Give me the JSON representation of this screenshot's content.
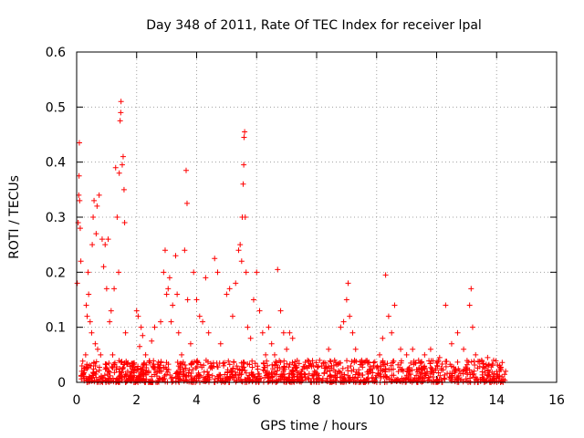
{
  "chart_data": {
    "type": "scatter",
    "title": "Day 348 of 2011, Rate Of TEC Index for receiver lpal",
    "xlabel": "GPS time / hours",
    "ylabel": "ROTI / TECUs",
    "xlim": [
      0,
      16
    ],
    "ylim": [
      0,
      0.6
    ],
    "xticks": [
      "0",
      "2",
      "4",
      "6",
      "8",
      "10",
      "12",
      "14",
      "16"
    ],
    "yticks": [
      "0",
      "0.1",
      "0.2",
      "0.3",
      "0.4",
      "0.5",
      "0.6"
    ],
    "grid": true,
    "marker": "+",
    "color": "#ff0000",
    "series": [
      {
        "points": [
          [
            0.02,
            0.18
          ],
          [
            0.05,
            0.29
          ],
          [
            0.07,
            0.34
          ],
          [
            0.08,
            0.375
          ],
          [
            0.09,
            0.435
          ],
          [
            0.1,
            0.33
          ],
          [
            0.12,
            0.28
          ],
          [
            0.14,
            0.22
          ],
          [
            0.17,
            0.02
          ],
          [
            0.22,
            0.015
          ],
          [
            0.25,
            0.025
          ],
          [
            0.3,
            0.05
          ],
          [
            0.32,
            0.14
          ],
          [
            0.35,
            0.12
          ],
          [
            0.38,
            0.2
          ],
          [
            0.4,
            0.16
          ],
          [
            0.45,
            0.11
          ],
          [
            0.5,
            0.09
          ],
          [
            0.52,
            0.25
          ],
          [
            0.55,
            0.3
          ],
          [
            0.58,
            0.33
          ],
          [
            0.62,
            0.07
          ],
          [
            0.65,
            0.27
          ],
          [
            0.68,
            0.32
          ],
          [
            0.7,
            0.06
          ],
          [
            0.75,
            0.34
          ],
          [
            0.8,
            0.05
          ],
          [
            0.85,
            0.26
          ],
          [
            0.9,
            0.21
          ],
          [
            0.95,
            0.25
          ],
          [
            1.0,
            0.17
          ],
          [
            1.05,
            0.26
          ],
          [
            1.1,
            0.11
          ],
          [
            1.15,
            0.13
          ],
          [
            1.2,
            0.05
          ],
          [
            1.25,
            0.17
          ],
          [
            1.3,
            0.39
          ],
          [
            1.35,
            0.3
          ],
          [
            1.4,
            0.2
          ],
          [
            1.42,
            0.38
          ],
          [
            1.45,
            0.475
          ],
          [
            1.47,
            0.49
          ],
          [
            1.48,
            0.51
          ],
          [
            1.52,
            0.395
          ],
          [
            1.55,
            0.41
          ],
          [
            1.58,
            0.35
          ],
          [
            1.6,
            0.29
          ],
          [
            1.63,
            0.09
          ],
          [
            1.7,
            0.02
          ],
          [
            1.8,
            0.01
          ],
          [
            1.9,
            0.02
          ],
          [
            2.0,
            0.13
          ],
          [
            2.05,
            0.12
          ],
          [
            2.1,
            0.065
          ],
          [
            2.15,
            0.1
          ],
          [
            2.2,
            0.085
          ],
          [
            2.3,
            0.05
          ],
          [
            2.4,
            0.02
          ],
          [
            2.5,
            0.075
          ],
          [
            2.6,
            0.1
          ],
          [
            2.7,
            0.02
          ],
          [
            2.8,
            0.11
          ],
          [
            2.9,
            0.2
          ],
          [
            2.95,
            0.24
          ],
          [
            3.0,
            0.16
          ],
          [
            3.05,
            0.17
          ],
          [
            3.1,
            0.19
          ],
          [
            3.15,
            0.11
          ],
          [
            3.2,
            0.14
          ],
          [
            3.3,
            0.23
          ],
          [
            3.35,
            0.16
          ],
          [
            3.4,
            0.09
          ],
          [
            3.5,
            0.05
          ],
          [
            3.6,
            0.24
          ],
          [
            3.65,
            0.385
          ],
          [
            3.68,
            0.325
          ],
          [
            3.7,
            0.15
          ],
          [
            3.8,
            0.07
          ],
          [
            3.9,
            0.2
          ],
          [
            4.0,
            0.15
          ],
          [
            4.1,
            0.12
          ],
          [
            4.2,
            0.11
          ],
          [
            4.3,
            0.19
          ],
          [
            4.4,
            0.09
          ],
          [
            4.5,
            0.03
          ],
          [
            4.6,
            0.225
          ],
          [
            4.7,
            0.2
          ],
          [
            4.8,
            0.07
          ],
          [
            4.9,
            0.03
          ],
          [
            5.0,
            0.16
          ],
          [
            5.1,
            0.17
          ],
          [
            5.2,
            0.12
          ],
          [
            5.3,
            0.18
          ],
          [
            5.4,
            0.24
          ],
          [
            5.45,
            0.25
          ],
          [
            5.5,
            0.22
          ],
          [
            5.52,
            0.3
          ],
          [
            5.55,
            0.36
          ],
          [
            5.57,
            0.395
          ],
          [
            5.58,
            0.445
          ],
          [
            5.6,
            0.455
          ],
          [
            5.62,
            0.3
          ],
          [
            5.65,
            0.2
          ],
          [
            5.7,
            0.1
          ],
          [
            5.8,
            0.08
          ],
          [
            5.9,
            0.15
          ],
          [
            6.0,
            0.2
          ],
          [
            6.1,
            0.13
          ],
          [
            6.2,
            0.09
          ],
          [
            6.3,
            0.05
          ],
          [
            6.4,
            0.1
          ],
          [
            6.5,
            0.07
          ],
          [
            6.6,
            0.05
          ],
          [
            6.7,
            0.205
          ],
          [
            6.8,
            0.13
          ],
          [
            6.9,
            0.09
          ],
          [
            7.0,
            0.06
          ],
          [
            7.1,
            0.09
          ],
          [
            7.2,
            0.08
          ],
          [
            7.3,
            0.03
          ],
          [
            7.5,
            0.02
          ],
          [
            7.7,
            0.04
          ],
          [
            7.9,
            0.03
          ],
          [
            8.1,
            0.04
          ],
          [
            8.3,
            0.035
          ],
          [
            8.4,
            0.06
          ],
          [
            8.5,
            0.03
          ],
          [
            8.6,
            0.04
          ],
          [
            8.8,
            0.1
          ],
          [
            8.9,
            0.11
          ],
          [
            9.0,
            0.15
          ],
          [
            9.05,
            0.18
          ],
          [
            9.1,
            0.12
          ],
          [
            9.2,
            0.09
          ],
          [
            9.3,
            0.06
          ],
          [
            9.5,
            0.04
          ],
          [
            9.7,
            0.035
          ],
          [
            9.9,
            0.03
          ],
          [
            10.1,
            0.05
          ],
          [
            10.2,
            0.08
          ],
          [
            10.3,
            0.195
          ],
          [
            10.4,
            0.12
          ],
          [
            10.5,
            0.09
          ],
          [
            10.6,
            0.14
          ],
          [
            10.8,
            0.06
          ],
          [
            11.0,
            0.05
          ],
          [
            11.2,
            0.06
          ],
          [
            11.4,
            0.04
          ],
          [
            11.6,
            0.05
          ],
          [
            11.8,
            0.06
          ],
          [
            12.0,
            0.035
          ],
          [
            12.1,
            0.045
          ],
          [
            12.3,
            0.14
          ],
          [
            12.5,
            0.07
          ],
          [
            12.7,
            0.09
          ],
          [
            12.9,
            0.06
          ],
          [
            13.1,
            0.14
          ],
          [
            13.15,
            0.17
          ],
          [
            13.2,
            0.1
          ],
          [
            13.3,
            0.05
          ],
          [
            13.5,
            0.04
          ],
          [
            13.7,
            0.045
          ],
          [
            13.9,
            0.04
          ],
          [
            14.1,
            0.03
          ],
          [
            14.3,
            0.02
          ]
        ]
      }
    ],
    "baseline_band": {
      "x_range": [
        0.15,
        14.3
      ],
      "y_range": [
        0.0,
        0.04
      ],
      "density": "dense"
    }
  }
}
